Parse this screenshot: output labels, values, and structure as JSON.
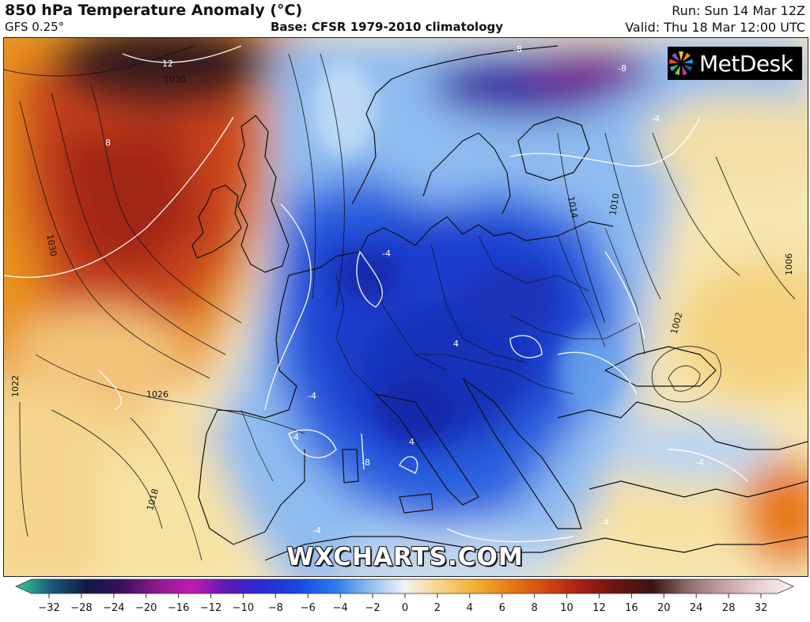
{
  "header": {
    "title": "850 hPa Temperature Anomaly (°C)",
    "model": "GFS 0.25°",
    "base": "Base: CFSR 1979-2010 climatology",
    "run": "Run: Sun 14 Mar 12Z",
    "valid": "Valid: Thu 18 Mar 12:00 UTC"
  },
  "logo": {
    "text": "MetDesk",
    "icon": "metdesk-star-icon"
  },
  "watermark": "WXCHARTS.COM",
  "colorbar": {
    "ticks": [
      "−32",
      "−28",
      "−24",
      "−20",
      "−16",
      "−12",
      "−10",
      "−8",
      "−6",
      "−4",
      "−2",
      "0",
      "2",
      "4",
      "6",
      "8",
      "10",
      "12",
      "16",
      "20",
      "24",
      "28",
      "32"
    ],
    "stops": [
      "#33cc99",
      "#1a5a7a",
      "#101a44",
      "#3a1060",
      "#8c1a8c",
      "#c21ab4",
      "#5a1ab4",
      "#2a2ad2",
      "#1848e0",
      "#2a78ec",
      "#8ebcf0",
      "#f2f2f2",
      "#f6d488",
      "#f2b030",
      "#e87a18",
      "#d24812",
      "#a51f14",
      "#6a1410",
      "#3a1414",
      "#8a6a6a",
      "#c2a2a2",
      "#e8d0d0",
      "#fff0f4"
    ]
  },
  "isobar_labels": [
    "1030",
    "1030",
    "1022",
    "1026",
    "1018",
    "1014",
    "1010",
    "1006",
    "1002"
  ],
  "anomaly_labels": [
    "12",
    "8",
    "-8",
    "-8",
    "-4",
    "-4",
    "4",
    "-4",
    "-4",
    "-8",
    "4",
    "-4",
    "-4",
    "-4"
  ]
}
